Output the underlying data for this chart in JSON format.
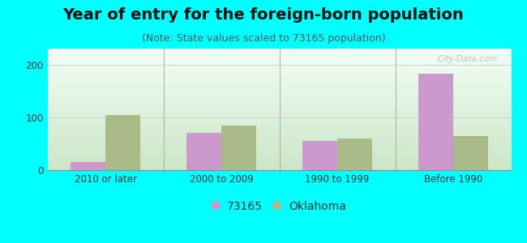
{
  "title": "Year of entry for the foreign-born population",
  "subtitle": "(Note: State values scaled to 73165 population)",
  "categories": [
    "2010 or later",
    "2000 to 2009",
    "1990 to 1999",
    "Before 1990"
  ],
  "values_73165": [
    15,
    70,
    55,
    183
  ],
  "values_oklahoma": [
    105,
    85,
    60,
    65
  ],
  "color_73165": "#cc99cc",
  "color_oklahoma": "#aabb88",
  "background_outer": "#00ffff",
  "ylim": [
    0,
    230
  ],
  "yticks": [
    0,
    100,
    200
  ],
  "bar_width": 0.3,
  "legend_label_1": "73165",
  "legend_label_2": "Oklahoma",
  "title_fontsize": 14,
  "subtitle_fontsize": 9,
  "tick_fontsize": 8.5,
  "legend_fontsize": 10
}
